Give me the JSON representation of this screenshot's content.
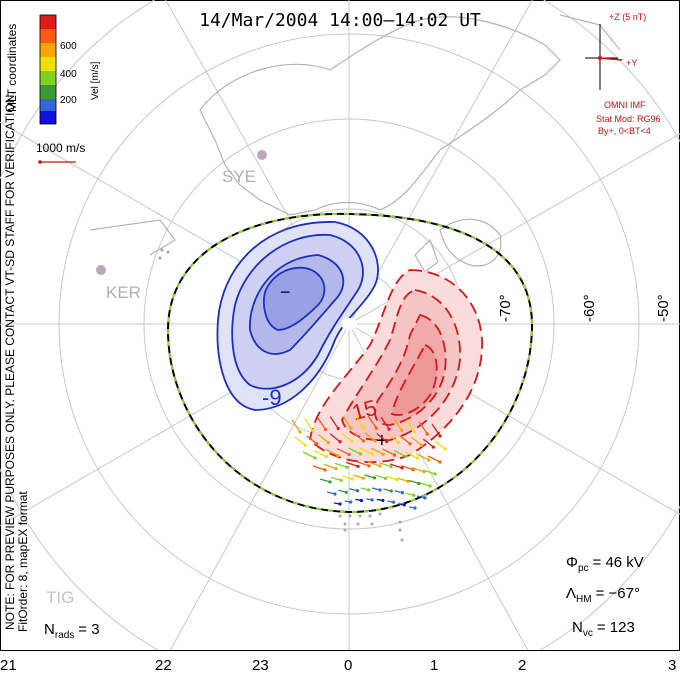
{
  "title": "14/Mar/2004  14:00–14:02  UT",
  "coordinates_label": "MLT coordinates",
  "colorbar": {
    "label": "Vel [m/s]",
    "ticks": [
      "600",
      "400",
      "200"
    ],
    "colors": [
      "#e01a1a",
      "#ff5a14",
      "#f5a400",
      "#f0e000",
      "#7ed321",
      "#3a9a3a",
      "#3465d8",
      "#1010e0"
    ]
  },
  "scale_vector": {
    "label": "1000 m/s",
    "color": "#d01010"
  },
  "imf": {
    "z_label": "+Z (5 nT)",
    "y_label": "+Y",
    "source": "OMNI IMF",
    "model": "Stat Mod: RG96",
    "condition": "By+, 0<BT<4",
    "color": "#d01010"
  },
  "stations": [
    {
      "label": "SYE",
      "icon": "radar-station-icon"
    },
    {
      "label": "KER",
      "icon": "radar-station-icon"
    },
    {
      "label": "TIG",
      "icon": "radar-station-icon"
    }
  ],
  "latitude_labels": [
    "-70°",
    "-60°",
    "-50°"
  ],
  "mlt_labels": [
    "21",
    "22",
    "23",
    "0",
    "1",
    "2",
    "3"
  ],
  "contours": {
    "negative": {
      "min_label": "−",
      "value_label": "-9",
      "color": "#1a30c0",
      "fill": "#8080e0"
    },
    "positive": {
      "max_label": "+",
      "value_label": "15",
      "color": "#d81818",
      "fill": "#f08080"
    }
  },
  "watermark": "NOTE: FOR PREVIEW PURPOSES ONLY.  PLEASE CONTACT VT-SD STAFF FOR VERIFICATION.",
  "fitorder": "FitOrder: 8, mapEX format",
  "stats": {
    "pcp_symbol": "Φ",
    "pcp_sub": "pc",
    "pcp_value": "=  46 kV",
    "hm_symbol": "Λ",
    "hm_sub": "HM",
    "hm_value": "=  −67°",
    "nvc_symbol": "N",
    "nvc_sub": "vc",
    "nvc_value": "=  123",
    "nrads_symbol": "N",
    "nrads_sub": "rads",
    "nrads_value": "=  3"
  }
}
